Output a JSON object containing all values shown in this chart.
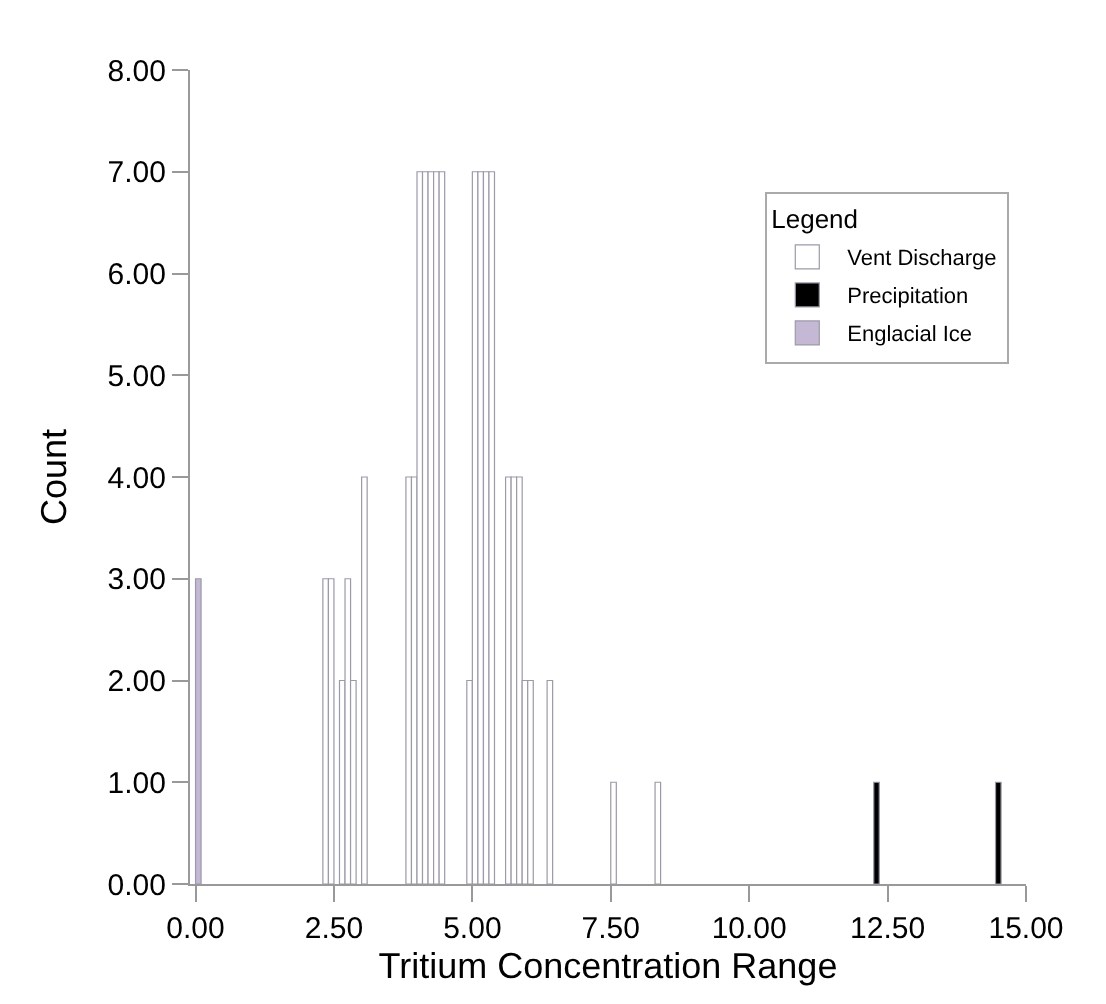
{
  "chart_data": {
    "type": "bar",
    "xlabel": "Tritium Concentration Range",
    "ylabel": "Count",
    "legend_title": "Legend",
    "legend": "top right",
    "xlim": [
      -0.1,
      15
    ],
    "xticks": [
      {
        "value": 0,
        "label": "0.00"
      },
      {
        "value": 2.5,
        "label": "2.50"
      },
      {
        "value": 5,
        "label": "5.00"
      },
      {
        "value": 7.5,
        "label": "7.50"
      },
      {
        "value": 10,
        "label": "10.00"
      },
      {
        "value": 12.5,
        "label": "12.50"
      },
      {
        "value": 15,
        "label": "15.00"
      }
    ],
    "ylim": [
      0,
      8
    ],
    "yticks": [
      {
        "value": 0,
        "label": "0.00"
      },
      {
        "value": 1,
        "label": "1.00"
      },
      {
        "value": 2,
        "label": "2.00"
      },
      {
        "value": 3,
        "label": "3.00"
      },
      {
        "value": 4,
        "label": "4.00"
      },
      {
        "value": 5,
        "label": "5.00"
      },
      {
        "value": 6,
        "label": "6.00"
      },
      {
        "value": 7,
        "label": "7.00"
      },
      {
        "value": 8,
        "label": "8.00"
      }
    ],
    "series": [
      {
        "name": "Vent Discharge",
        "color": "#ffffff",
        "x": [
          2.35,
          2.45,
          2.65,
          2.75,
          2.85,
          3.05,
          3.85,
          3.95,
          4.05,
          4.15,
          4.25,
          4.35,
          4.45,
          4.95,
          5.05,
          5.15,
          5.25,
          5.35,
          5.65,
          5.75,
          5.85,
          5.95,
          6.05,
          6.4,
          7.55,
          8.35
        ],
        "values": [
          3,
          3,
          2,
          3,
          2,
          4,
          4,
          4,
          7,
          7,
          7,
          7,
          7,
          2,
          7,
          7,
          7,
          7,
          4,
          4,
          4,
          2,
          2,
          2,
          1,
          1
        ]
      },
      {
        "name": "Precipitation",
        "color": "#000000",
        "x": [
          12.3,
          14.5
        ],
        "values": [
          1,
          1
        ]
      },
      {
        "name": "Englacial Ice",
        "color": "#c4b8d4",
        "x": [
          0.05
        ],
        "values": [
          3
        ]
      }
    ]
  }
}
